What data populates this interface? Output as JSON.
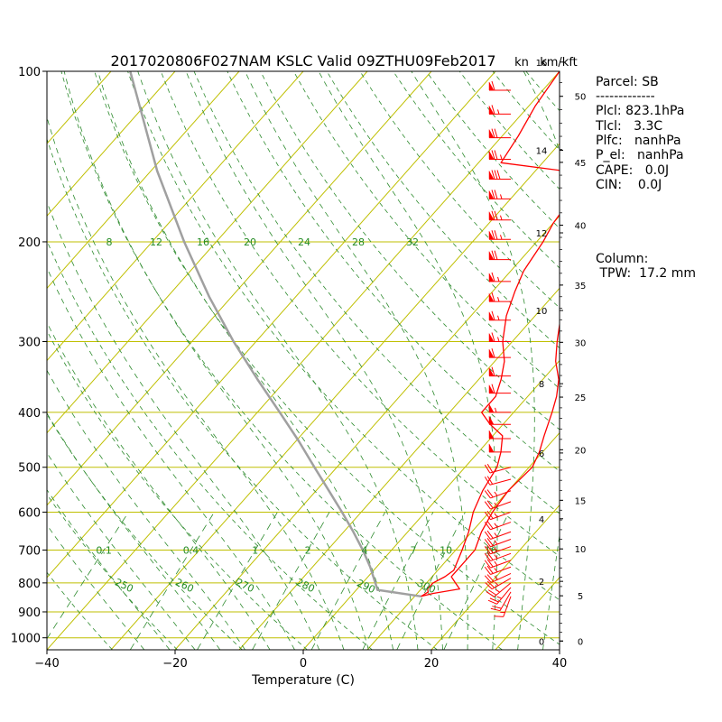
{
  "title": "2017020806F027NAM KSLC Valid 09ZTHU09Feb2017",
  "unit_kn": "kn",
  "unit_kmkft": "km/kft",
  "side_panel": {
    "parcel": "Parcel: SB",
    "divider": "-------------",
    "plcl": "Plcl: 823.1hPa",
    "tlcl": "Tlcl:   3.3C",
    "plfc": "Plfc:   nanhPa",
    "pel": "P_el:   nanhPa",
    "cape": "CAPE:   0.0J",
    "cin": "CIN:    0.0J",
    "column": "Column:",
    "tpw": " TPW:  17.2 mm"
  },
  "chart_data": {
    "type": "line",
    "subtype": "skew-T log-P",
    "title": "2017020806F027NAM KSLC Valid 09ZTHU09Feb2017",
    "xlabel": "Temperature (C)",
    "ylabel": "",
    "xlim": [
      -40,
      40
    ],
    "ylim_hpa": [
      1050,
      100
    ],
    "x_ticks": [
      -40,
      -20,
      0,
      20,
      40
    ],
    "pressure_ticks": [
      100,
      200,
      300,
      400,
      500,
      600,
      700,
      800,
      900,
      1000
    ],
    "km_ticks": [
      0,
      2,
      4,
      6,
      8,
      10,
      12,
      14,
      16
    ],
    "kft_ticks": [
      0,
      5,
      10,
      15,
      20,
      25,
      30,
      35,
      40,
      45,
      50
    ],
    "mixing_ratio_labels": [
      "0.1",
      "0.4",
      "1",
      "2",
      "4",
      "7",
      "10",
      "16"
    ],
    "mixing_ratio_values": [
      0.1,
      0.4,
      1,
      2,
      4,
      7,
      10,
      16
    ],
    "dry_adiabat_labels": [
      "250",
      "260",
      "270",
      "280",
      "290",
      "300"
    ],
    "saturated_adiabat_labels": [
      "8",
      "12",
      "16",
      "20",
      "24",
      "28",
      "32"
    ],
    "temperature_profile": [
      {
        "p": 845,
        "t": 11.0
      },
      {
        "p": 835,
        "t": 12.5
      },
      {
        "p": 820,
        "t": 16.0
      },
      {
        "p": 800,
        "t": 14.5
      },
      {
        "p": 780,
        "t": 13.0
      },
      {
        "p": 760,
        "t": 13.0
      },
      {
        "p": 700,
        "t": 13.0
      },
      {
        "p": 650,
        "t": 11.5
      },
      {
        "p": 600,
        "t": 10.5
      },
      {
        "p": 550,
        "t": 10.0
      },
      {
        "p": 500,
        "t": 10.5
      },
      {
        "p": 470,
        "t": 9.5
      },
      {
        "p": 440,
        "t": 8.0
      },
      {
        "p": 400,
        "t": 6.0
      },
      {
        "p": 375,
        "t": 4.5
      },
      {
        "p": 350,
        "t": 2.5
      },
      {
        "p": 325,
        "t": -0.5
      },
      {
        "p": 300,
        "t": -3.0
      },
      {
        "p": 270,
        "t": -6.0
      },
      {
        "p": 245,
        "t": -9.5
      },
      {
        "p": 225,
        "t": -11.5
      },
      {
        "p": 205,
        "t": -12.5
      },
      {
        "p": 195,
        "t": -12.0
      },
      {
        "p": 185,
        "t": -11.5
      },
      {
        "p": 170,
        "t": -9.5
      },
      {
        "p": 160,
        "t": -7.0
      },
      {
        "p": 150,
        "t": -3.5
      },
      {
        "p": 140,
        "t": 0.5
      },
      {
        "p": 130,
        "t": 5.0
      },
      {
        "p": 120,
        "t": 7.5
      },
      {
        "p": 110,
        "t": 9.5
      },
      {
        "p": 100,
        "t": 10.5
      }
    ],
    "dewpoint_profile": [
      {
        "p": 845,
        "t": 11.0
      },
      {
        "p": 830,
        "t": 11.5
      },
      {
        "p": 820,
        "t": 11.0
      },
      {
        "p": 800,
        "t": 11.0
      },
      {
        "p": 780,
        "t": 12.0
      },
      {
        "p": 760,
        "t": 12.5
      },
      {
        "p": 700,
        "t": 11.0
      },
      {
        "p": 650,
        "t": 9.5
      },
      {
        "p": 600,
        "t": 7.5
      },
      {
        "p": 550,
        "t": 6.0
      },
      {
        "p": 500,
        "t": 5.0
      },
      {
        "p": 470,
        "t": 3.5
      },
      {
        "p": 440,
        "t": 1.5
      },
      {
        "p": 420,
        "t": -2.0
      },
      {
        "p": 400,
        "t": -5.0
      },
      {
        "p": 375,
        "t": -5.0
      },
      {
        "p": 350,
        "t": -6.5
      },
      {
        "p": 325,
        "t": -8.5
      },
      {
        "p": 300,
        "t": -11.5
      },
      {
        "p": 270,
        "t": -14.5
      },
      {
        "p": 245,
        "t": -16.5
      },
      {
        "p": 225,
        "t": -18.0
      },
      {
        "p": 200,
        "t": -19.0
      },
      {
        "p": 185,
        "t": -20.0
      },
      {
        "p": 170,
        "t": -20.5
      },
      {
        "p": 155,
        "t": -14.5
      },
      {
        "p": 145,
        "t": -36.5
      },
      {
        "p": 130,
        "t": -37.5
      },
      {
        "p": 115,
        "t": -39.0
      },
      {
        "p": 100,
        "t": -40.0
      }
    ],
    "parcel_profile": [
      {
        "p": 845,
        "t": 11.0
      },
      {
        "p": 823.1,
        "t": 3.3
      },
      {
        "p": 800,
        "t": 2.0
      },
      {
        "p": 750,
        "t": -1.0
      },
      {
        "p": 700,
        "t": -4.5
      },
      {
        "p": 650,
        "t": -8.5
      },
      {
        "p": 600,
        "t": -13.0
      },
      {
        "p": 550,
        "t": -18.0
      },
      {
        "p": 500,
        "t": -23.5
      },
      {
        "p": 450,
        "t": -29.5
      },
      {
        "p": 400,
        "t": -36.5
      },
      {
        "p": 350,
        "t": -44.5
      },
      {
        "p": 300,
        "t": -53.5
      },
      {
        "p": 250,
        "t": -63.5
      },
      {
        "p": 200,
        "t": -75.0
      },
      {
        "p": 150,
        "t": -89.0
      },
      {
        "p": 100,
        "t": -107.0
      }
    ],
    "wind_barbs": [
      {
        "p": 845,
        "dir": 200,
        "spd": 15
      },
      {
        "p": 830,
        "dir": 210,
        "spd": 20
      },
      {
        "p": 815,
        "dir": 220,
        "spd": 25
      },
      {
        "p": 800,
        "dir": 230,
        "spd": 25
      },
      {
        "p": 785,
        "dir": 240,
        "spd": 25
      },
      {
        "p": 770,
        "dir": 245,
        "spd": 25
      },
      {
        "p": 750,
        "dir": 250,
        "spd": 25
      },
      {
        "p": 730,
        "dir": 250,
        "spd": 25
      },
      {
        "p": 710,
        "dir": 250,
        "spd": 25
      },
      {
        "p": 690,
        "dir": 250,
        "spd": 25
      },
      {
        "p": 670,
        "dir": 250,
        "spd": 25
      },
      {
        "p": 650,
        "dir": 250,
        "spd": 25
      },
      {
        "p": 625,
        "dir": 250,
        "spd": 25
      },
      {
        "p": 600,
        "dir": 250,
        "spd": 25
      },
      {
        "p": 575,
        "dir": 250,
        "spd": 25
      },
      {
        "p": 550,
        "dir": 250,
        "spd": 25
      },
      {
        "p": 525,
        "dir": 255,
        "spd": 20
      },
      {
        "p": 500,
        "dir": 255,
        "spd": 20
      },
      {
        "p": 470,
        "dir": 270,
        "spd": 50
      },
      {
        "p": 445,
        "dir": 270,
        "spd": 50
      },
      {
        "p": 420,
        "dir": 270,
        "spd": 50
      },
      {
        "p": 400,
        "dir": 270,
        "spd": 55
      },
      {
        "p": 370,
        "dir": 270,
        "spd": 60
      },
      {
        "p": 345,
        "dir": 270,
        "spd": 60
      },
      {
        "p": 320,
        "dir": 270,
        "spd": 60
      },
      {
        "p": 300,
        "dir": 270,
        "spd": 65
      },
      {
        "p": 275,
        "dir": 270,
        "spd": 65
      },
      {
        "p": 255,
        "dir": 270,
        "spd": 65
      },
      {
        "p": 235,
        "dir": 270,
        "spd": 65
      },
      {
        "p": 215,
        "dir": 270,
        "spd": 70
      },
      {
        "p": 198,
        "dir": 270,
        "spd": 75
      },
      {
        "p": 183,
        "dir": 270,
        "spd": 75
      },
      {
        "p": 168,
        "dir": 270,
        "spd": 75
      },
      {
        "p": 155,
        "dir": 270,
        "spd": 80
      },
      {
        "p": 143,
        "dir": 270,
        "spd": 75
      },
      {
        "p": 131,
        "dir": 270,
        "spd": 70
      },
      {
        "p": 119,
        "dir": 270,
        "spd": 65
      },
      {
        "p": 108,
        "dir": 270,
        "spd": 60
      }
    ]
  },
  "colors": {
    "temperature": "#ff0000",
    "dewpoint": "#ff0000",
    "parcel": "#a0a0a0",
    "wind_barbs": "#ff0000",
    "isotherms": "#bfbf00",
    "isobars": "#bfbf00",
    "dry_adiabats": "#2e8b2e",
    "saturated_adiabats": "#2e8b2e",
    "mixing_ratio": "#2e8b2e",
    "label_green": "#228b22"
  }
}
